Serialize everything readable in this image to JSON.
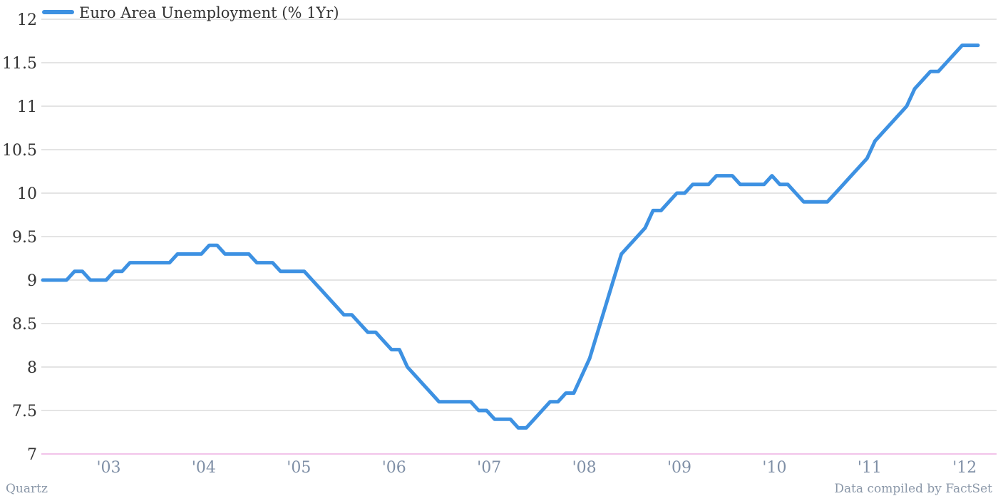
{
  "chart_data": {
    "type": "line",
    "title": "",
    "xlabel": "",
    "ylabel": "",
    "ylim": [
      7,
      12
    ],
    "yticks": [
      "7",
      "7.5",
      "8",
      "8.5",
      "9",
      "9.5",
      "10",
      "10.5",
      "11",
      "11.5",
      "12"
    ],
    "xticks": [
      "'03",
      "'04",
      "'05",
      "'06",
      "'07",
      "'08",
      "'09",
      "'10",
      "'11",
      "'12"
    ],
    "grid": true,
    "legend_position": "top-left",
    "series": [
      {
        "name": "Euro Area Unemployment (% 1Yr)",
        "color": "#3d91e2",
        "x": [
          "2002-09",
          "2002-10",
          "2002-11",
          "2002-12",
          "2003-01",
          "2003-02",
          "2003-03",
          "2003-04",
          "2003-05",
          "2003-06",
          "2003-07",
          "2003-08",
          "2003-09",
          "2003-10",
          "2003-11",
          "2003-12",
          "2004-01",
          "2004-02",
          "2004-03",
          "2004-04",
          "2004-05",
          "2004-06",
          "2004-07",
          "2004-08",
          "2004-09",
          "2004-10",
          "2004-11",
          "2004-12",
          "2005-01",
          "2005-02",
          "2005-03",
          "2005-04",
          "2005-05",
          "2005-06",
          "2005-07",
          "2005-08",
          "2005-09",
          "2005-10",
          "2005-11",
          "2005-12",
          "2006-01",
          "2006-02",
          "2006-03",
          "2006-04",
          "2006-05",
          "2006-06",
          "2006-07",
          "2006-08",
          "2006-09",
          "2006-10",
          "2006-11",
          "2006-12",
          "2007-01",
          "2007-02",
          "2007-03",
          "2007-04",
          "2007-05",
          "2007-06",
          "2007-07",
          "2007-08",
          "2007-09",
          "2007-10",
          "2007-11",
          "2007-12",
          "2008-01",
          "2008-02",
          "2008-03",
          "2008-04",
          "2008-05",
          "2008-06",
          "2008-07",
          "2008-08",
          "2008-09",
          "2008-10",
          "2008-11",
          "2008-12",
          "2009-01",
          "2009-02",
          "2009-03",
          "2009-04",
          "2009-05",
          "2009-06",
          "2009-07",
          "2009-08",
          "2009-09",
          "2009-10",
          "2009-11",
          "2009-12",
          "2010-01",
          "2010-02",
          "2010-03",
          "2010-04",
          "2010-05",
          "2010-06",
          "2010-07",
          "2010-08",
          "2010-09",
          "2010-10",
          "2010-11",
          "2010-12",
          "2011-01",
          "2011-02",
          "2011-03",
          "2011-04",
          "2011-05",
          "2011-06",
          "2011-07",
          "2011-08",
          "2011-09",
          "2011-10",
          "2011-11",
          "2011-12",
          "2012-01",
          "2012-02",
          "2012-03",
          "2012-04",
          "2012-05",
          "2012-06",
          "2012-07"
        ],
        "values": [
          9.0,
          9.0,
          9.0,
          9.0,
          9.1,
          9.1,
          9.0,
          9.0,
          9.0,
          9.1,
          9.1,
          9.2,
          9.2,
          9.2,
          9.2,
          9.2,
          9.2,
          9.3,
          9.3,
          9.3,
          9.3,
          9.4,
          9.4,
          9.3,
          9.3,
          9.3,
          9.3,
          9.2,
          9.2,
          9.2,
          9.1,
          9.1,
          9.1,
          9.1,
          9.0,
          8.9,
          8.8,
          8.7,
          8.6,
          8.6,
          8.5,
          8.4,
          8.4,
          8.3,
          8.2,
          8.2,
          8.0,
          7.9,
          7.8,
          7.7,
          7.6,
          7.6,
          7.6,
          7.6,
          7.6,
          7.5,
          7.5,
          7.4,
          7.4,
          7.4,
          7.3,
          7.3,
          7.4,
          7.5,
          7.6,
          7.6,
          7.7,
          7.7,
          7.9,
          8.1,
          8.4,
          8.7,
          9.0,
          9.3,
          9.4,
          9.5,
          9.6,
          9.8,
          9.8,
          9.9,
          10.0,
          10.0,
          10.1,
          10.1,
          10.1,
          10.2,
          10.2,
          10.2,
          10.1,
          10.1,
          10.1,
          10.1,
          10.2,
          10.1,
          10.1,
          10.0,
          9.9,
          9.9,
          9.9,
          9.9,
          10.0,
          10.1,
          10.2,
          10.3,
          10.4,
          10.6,
          10.7,
          10.8,
          10.9,
          11.0,
          11.2,
          11.3,
          11.4,
          11.4,
          11.5,
          11.6,
          11.7,
          11.7,
          11.7
        ]
      }
    ]
  },
  "footer": {
    "left": "Quartz",
    "right": "Data compiled by FactSet"
  }
}
